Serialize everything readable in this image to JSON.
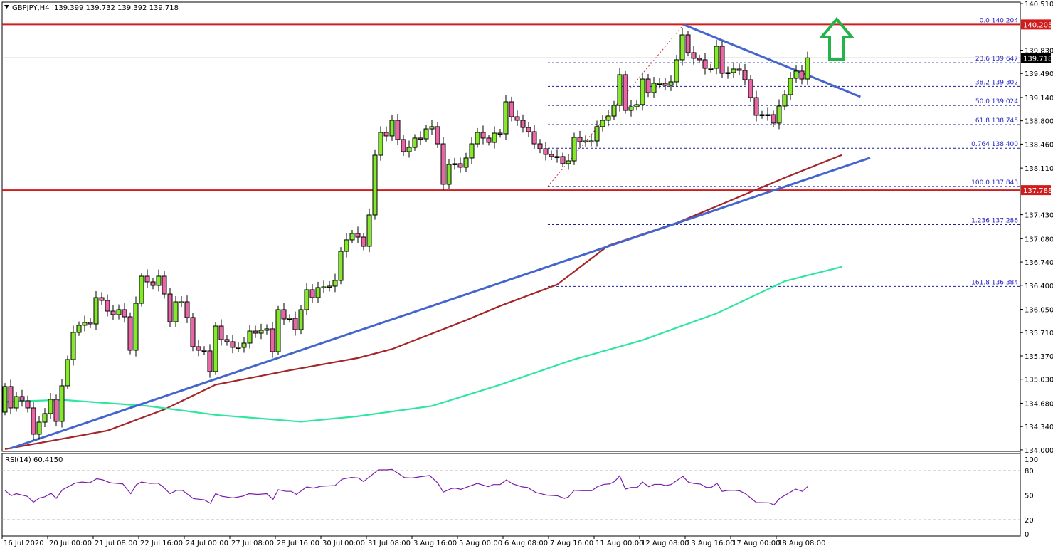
{
  "header": {
    "symbol": "GBPJPY,H4",
    "ohlc": "139.399 139.732 139.392 139.718"
  },
  "rsi_panel": {
    "label": "RSI(14) 60.4150"
  },
  "colors": {
    "bull": "#86e82c",
    "bear": "#e866a3",
    "resistance": "#d01c1c",
    "trendline": "#4466cc",
    "ma_fast": "#a3262a",
    "ma_slow": "#2fe6a0",
    "fib": "#1c1c9c",
    "rsi": "#7a1fa8",
    "arrow": "#22b34a"
  },
  "chart_data": {
    "type": "candlestick",
    "symbol": "GBPJPY",
    "timeframe": "H4",
    "ylim": [
      134.0,
      140.51
    ],
    "y_ticks": [
      "140.510",
      "139.830",
      "139.490",
      "139.140",
      "138.800",
      "138.460",
      "138.110",
      "137.430",
      "137.080",
      "136.740",
      "136.400",
      "136.050",
      "135.710",
      "135.370",
      "135.030",
      "134.680",
      "134.340",
      "134.000"
    ],
    "x_ticks": [
      {
        "bar": 0,
        "label": "16 Jul 2020"
      },
      {
        "bar": 8,
        "label": "20 Jul 00:00"
      },
      {
        "bar": 16,
        "label": "21 Jul 08:00"
      },
      {
        "bar": 24,
        "label": "22 Jul 16:00"
      },
      {
        "bar": 32,
        "label": "24 Jul 00:00"
      },
      {
        "bar": 40,
        "label": "27 Jul 08:00"
      },
      {
        "bar": 48,
        "label": "28 Jul 16:00"
      },
      {
        "bar": 56,
        "label": "30 Jul 00:00"
      },
      {
        "bar": 64,
        "label": "31 Jul 08:00"
      },
      {
        "bar": 72,
        "label": "3 Aug 16:00"
      },
      {
        "bar": 80,
        "label": "5 Aug 00:00"
      },
      {
        "bar": 88,
        "label": "6 Aug 08:00"
      },
      {
        "bar": 96,
        "label": "7 Aug 16:00"
      },
      {
        "bar": 104,
        "label": "11 Aug 00:00"
      },
      {
        "bar": 112,
        "label": "12 Aug 08:00"
      },
      {
        "bar": 120,
        "label": "13 Aug 16:00"
      },
      {
        "bar": 128,
        "label": "17 Aug 00:00"
      },
      {
        "bar": 136,
        "label": "18 Aug 08:00"
      }
    ],
    "first_open": 134.55,
    "close": [
      134.924,
      134.612,
      134.778,
      134.716,
      134.612,
      134.228,
      134.404,
      134.529,
      134.737,
      134.415,
      134.934,
      135.318,
      135.713,
      135.817,
      135.858,
      135.837,
      136.221,
      136.18,
      136.024,
      135.972,
      136.045,
      135.941,
      135.453,
      136.138,
      136.533,
      136.45,
      136.398,
      136.533,
      136.273,
      135.868,
      136.159,
      136.159,
      135.931,
      135.505,
      135.453,
      135.443,
      135.142,
      135.806,
      135.609,
      135.578,
      135.495,
      135.495,
      135.557,
      135.733,
      135.702,
      135.744,
      135.765,
      135.432,
      136.045,
      135.91,
      135.92,
      135.754,
      136.045,
      136.336,
      136.221,
      136.367,
      136.377,
      136.388,
      136.471,
      136.896,
      137.063,
      137.156,
      137.104,
      136.969,
      137.426,
      138.298,
      138.631,
      138.579,
      138.807,
      138.527,
      138.35,
      138.412,
      138.548,
      138.537,
      138.682,
      138.714,
      138.464,
      137.873,
      138.163,
      138.174,
      138.122,
      138.257,
      138.464,
      138.631,
      138.548,
      138.485,
      138.62,
      138.61,
      139.077,
      138.859,
      138.807,
      138.703,
      138.641,
      138.464,
      138.392,
      138.309,
      138.278,
      138.278,
      138.174,
      138.215,
      138.558,
      138.496,
      138.506,
      138.506,
      138.714,
      138.807,
      138.869,
      139.025,
      139.472,
      138.952,
      139.004,
      139.036,
      139.409,
      139.212,
      139.347,
      139.347,
      139.316,
      139.368,
      139.69,
      140.053,
      139.794,
      139.711,
      139.69,
      139.565,
      139.565,
      139.887,
      139.492,
      139.503,
      139.555,
      139.534,
      139.399,
      139.139,
      138.88,
      138.89,
      138.89,
      138.766,
      139.015,
      139.181,
      139.42,
      139.524,
      139.409,
      139.718
    ],
    "current_price": "139.718",
    "horizontal_levels": [
      {
        "price": 140.205,
        "label": "140.205"
      },
      {
        "price": 137.788,
        "label": "137.788"
      }
    ],
    "fibonacci": {
      "from_bar": 96,
      "to_bar": 119,
      "levels": [
        {
          "price": 140.204,
          "label": "0.0 140.204"
        },
        {
          "price": 139.647,
          "label": "23.6 139.647"
        },
        {
          "price": 139.302,
          "label": "38.2 139.302"
        },
        {
          "price": 139.024,
          "label": "50.0 139.024"
        },
        {
          "price": 138.745,
          "label": "61.8 138.745"
        },
        {
          "price": 138.4,
          "label": "0.764 138.400"
        },
        {
          "price": 137.843,
          "label": "100.0 137.843"
        },
        {
          "price": 137.286,
          "label": "1.236 137.286"
        },
        {
          "price": 136.384,
          "label": "161.8 136.384"
        }
      ]
    },
    "trendlines": [
      {
        "kind": "support",
        "from": [
          0.9,
          134.02
        ],
        "to": [
          152,
          138.26
        ]
      },
      {
        "kind": "resistance",
        "from": [
          119.3,
          140.2
        ],
        "to": [
          150.3,
          139.15
        ]
      }
    ],
    "moving_averages": [
      {
        "role": "fast",
        "points": [
          [
            0,
            134.01
          ],
          [
            18,
            134.28
          ],
          [
            28,
            134.59
          ],
          [
            37,
            134.95
          ],
          [
            50,
            135.16
          ],
          [
            62,
            135.34
          ],
          [
            68,
            135.47
          ],
          [
            81,
            135.89
          ],
          [
            87,
            136.1
          ],
          [
            97,
            136.41
          ],
          [
            106,
            136.98
          ],
          [
            118,
            137.31
          ],
          [
            131,
            137.76
          ],
          [
            137,
            137.97
          ],
          [
            147,
            138.3
          ]
        ]
      },
      {
        "role": "slow",
        "points": [
          [
            0,
            134.7
          ],
          [
            10,
            134.73
          ],
          [
            25,
            134.64
          ],
          [
            37,
            134.51
          ],
          [
            52,
            134.41
          ],
          [
            62,
            134.49
          ],
          [
            75,
            134.64
          ],
          [
            87,
            134.95
          ],
          [
            100,
            135.32
          ],
          [
            112,
            135.6
          ],
          [
            125,
            135.99
          ],
          [
            137,
            136.46
          ],
          [
            147,
            136.67
          ]
        ]
      }
    ],
    "rsi": {
      "period": 14,
      "value": 60.415,
      "ylim": [
        0,
        100
      ],
      "levels": [
        80,
        50,
        20
      ],
      "axis_labels": [
        "100",
        "80",
        "50",
        "20",
        "0"
      ],
      "points": [
        [
          0,
          55.7
        ],
        [
          1.1,
          49.4
        ],
        [
          2,
          51.7
        ],
        [
          3.9,
          48.6
        ],
        [
          5,
          41.4
        ],
        [
          6.1,
          46.6
        ],
        [
          7,
          48
        ],
        [
          8.1,
          52.3
        ],
        [
          9,
          46
        ],
        [
          10.1,
          56.6
        ],
        [
          12.3,
          64.6
        ],
        [
          13.5,
          66
        ],
        [
          14.9,
          65.1
        ],
        [
          16.1,
          70
        ],
        [
          17.1,
          68.9
        ],
        [
          18.5,
          65.1
        ],
        [
          19.7,
          64.3
        ],
        [
          20.7,
          63.7
        ],
        [
          22.1,
          51.7
        ],
        [
          23.1,
          62.9
        ],
        [
          24,
          66
        ],
        [
          25.5,
          64.3
        ],
        [
          26.9,
          64.6
        ],
        [
          27.9,
          59.4
        ],
        [
          29,
          51.7
        ],
        [
          30.2,
          56
        ],
        [
          31.2,
          55.7
        ],
        [
          33.1,
          45.7
        ],
        [
          35,
          44.3
        ],
        [
          36.1,
          40
        ],
        [
          37,
          51.7
        ],
        [
          38.1,
          48.6
        ],
        [
          40,
          46.6
        ],
        [
          41.7,
          48.6
        ],
        [
          42.9,
          51.7
        ],
        [
          44.4,
          50.9
        ],
        [
          46,
          51.7
        ],
        [
          47.1,
          44.9
        ],
        [
          48,
          56.6
        ],
        [
          49.4,
          54.6
        ],
        [
          50.3,
          54.6
        ],
        [
          51.2,
          50.9
        ],
        [
          53,
          60
        ],
        [
          54.2,
          58.6
        ],
        [
          55.6,
          60.9
        ],
        [
          58,
          61.7
        ],
        [
          59.2,
          69.4
        ],
        [
          60.9,
          71.7
        ],
        [
          62.1,
          70.9
        ],
        [
          63,
          66.6
        ],
        [
          65.6,
          80.9
        ],
        [
          67.1,
          80.9
        ],
        [
          68,
          81.4
        ],
        [
          70.2,
          71.4
        ],
        [
          71.4,
          70.9
        ],
        [
          72.8,
          72.3
        ],
        [
          74.6,
          74
        ],
        [
          76,
          65.1
        ],
        [
          77,
          53.7
        ],
        [
          78.4,
          58
        ],
        [
          79.1,
          58.6
        ],
        [
          80.1,
          57.1
        ],
        [
          81.8,
          61.4
        ],
        [
          83,
          64.3
        ],
        [
          84.9,
          60.3
        ],
        [
          85.8,
          62.9
        ],
        [
          87,
          62.9
        ],
        [
          88.1,
          68.6
        ],
        [
          89.2,
          63.7
        ],
        [
          90.9,
          60
        ],
        [
          91.8,
          59.4
        ],
        [
          93.3,
          53.1
        ],
        [
          95.2,
          50
        ],
        [
          97.1,
          49.1
        ],
        [
          98.3,
          46
        ],
        [
          99,
          47.7
        ],
        [
          100,
          56
        ],
        [
          101.4,
          55.4
        ],
        [
          103.1,
          55.4
        ],
        [
          104,
          60
        ],
        [
          105.2,
          63.1
        ],
        [
          106.2,
          63.7
        ],
        [
          107.1,
          66.6
        ],
        [
          108,
          73.7
        ],
        [
          109,
          57.4
        ],
        [
          110,
          59.4
        ],
        [
          111.1,
          59.4
        ],
        [
          112,
          66
        ],
        [
          113.1,
          60.3
        ],
        [
          114.1,
          63.1
        ],
        [
          115.3,
          63.1
        ],
        [
          116,
          61.7
        ],
        [
          117,
          62.9
        ],
        [
          119.1,
          72.9
        ],
        [
          120.1,
          65.7
        ],
        [
          121,
          64.3
        ],
        [
          122.2,
          63.4
        ],
        [
          123.2,
          59.4
        ],
        [
          124.1,
          59.4
        ],
        [
          125.1,
          64.6
        ],
        [
          126,
          54.6
        ],
        [
          127,
          55.7
        ],
        [
          128.2,
          56
        ],
        [
          129.1,
          55.1
        ],
        [
          130.1,
          51.7
        ],
        [
          132,
          40.9
        ],
        [
          134.2,
          40.6
        ],
        [
          135.1,
          38
        ],
        [
          136.1,
          46
        ],
        [
          137.3,
          50.9
        ],
        [
          138.9,
          57.4
        ],
        [
          140.1,
          54.6
        ],
        [
          141,
          60.4
        ]
      ]
    },
    "annotation": {
      "icon": "arrow-up-icon",
      "meaning": "bullish"
    }
  }
}
